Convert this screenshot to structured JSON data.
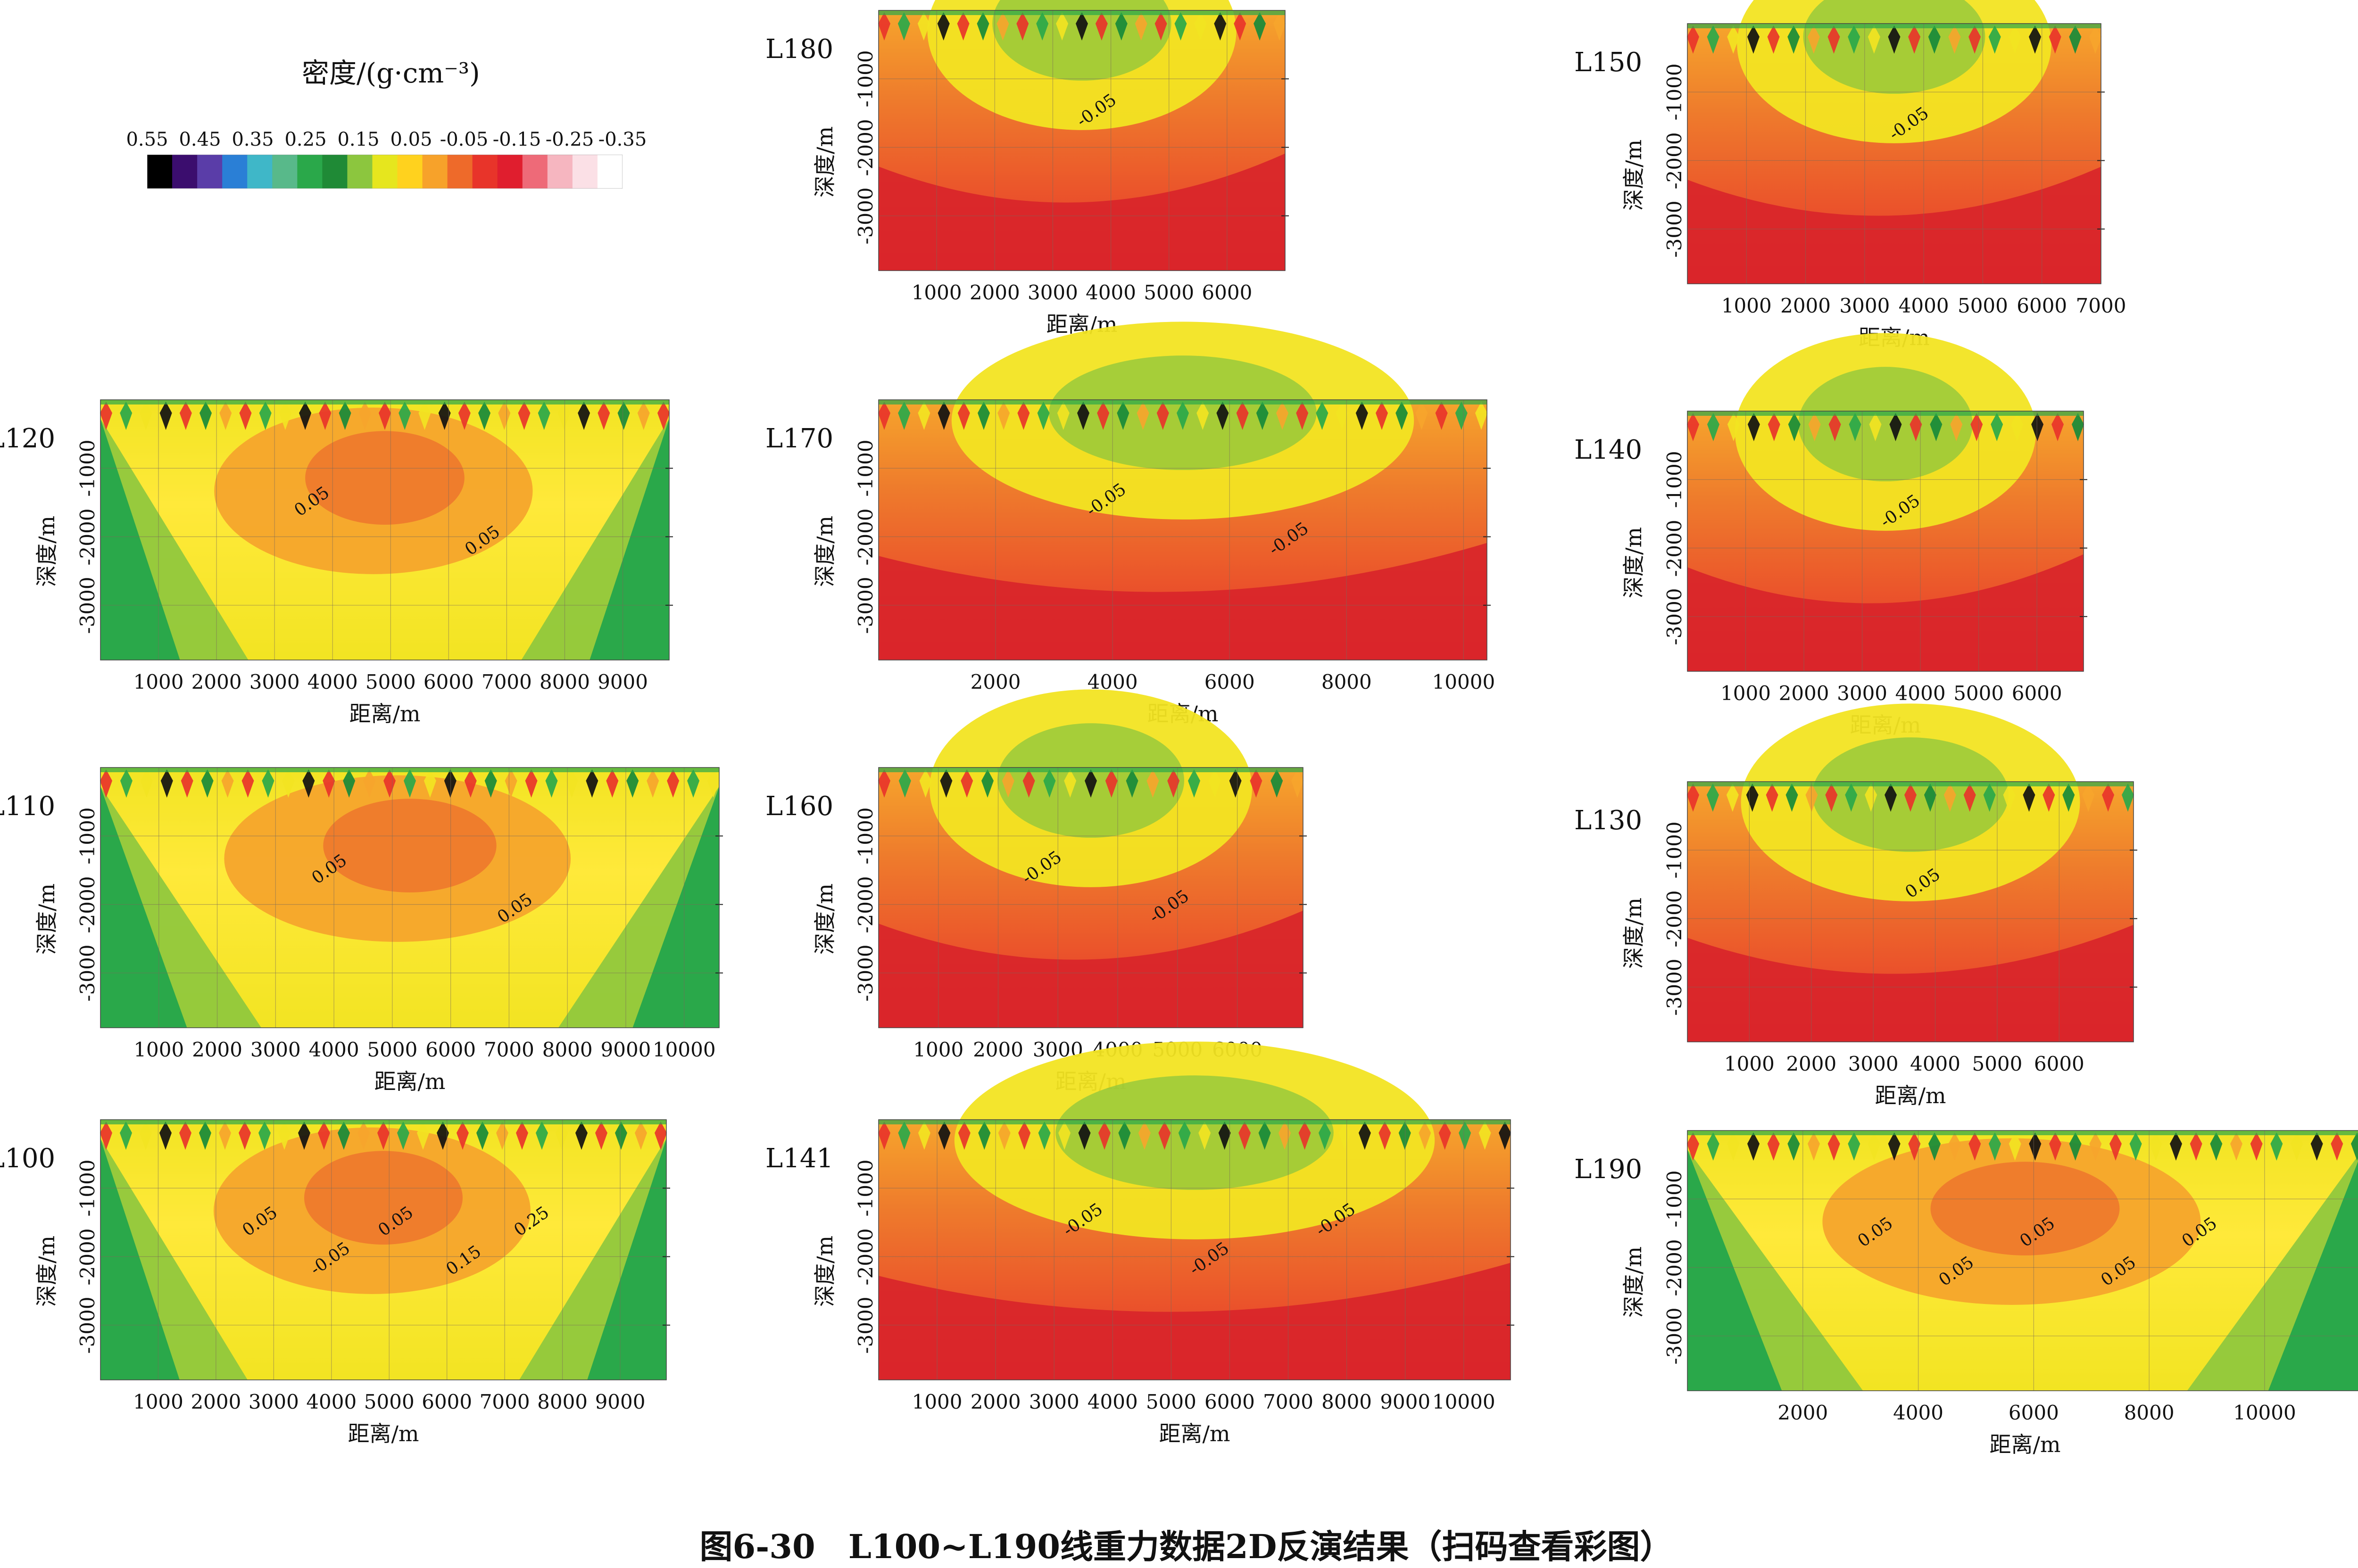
{
  "legend": {
    "title": "密度/(g·cm⁻³)",
    "ticks": [
      "0.55",
      "0.45",
      "0.35",
      "0.25",
      "0.15",
      "0.05",
      "-0.05",
      "-0.15",
      "-0.25",
      "-0.35"
    ],
    "colors": [
      "#000000",
      "#3b0d6e",
      "#5a3da8",
      "#2a7fd6",
      "#3fb7c8",
      "#58b98a",
      "#2aa84a",
      "#1f8a36",
      "#8cc63e",
      "#e6e61e",
      "#ffd21e",
      "#f7a22a",
      "#ee6a2a",
      "#e8342a",
      "#e01e2e",
      "#ee6a78",
      "#f6b6c0",
      "#fbe0e6",
      "#ffffff"
    ]
  },
  "axis_labels": {
    "x": "距离/m",
    "y": "深度/m"
  },
  "caption": "图6-30　L100~L190线重力数据2D反演结果（扫码查看彩图）",
  "chart_data": [
    {
      "type": "heatmap",
      "line": "L180",
      "xticks": [
        "1000",
        "2000",
        "3000",
        "4000",
        "5000",
        "6000"
      ],
      "yticks": [
        "-1000",
        "-2000",
        "-3000"
      ],
      "xlim": [
        0,
        7000
      ],
      "ylim": [
        -3800,
        0
      ],
      "contour_labels": [
        "-0.05"
      ],
      "dominant": "-0.05 to -0.15"
    },
    {
      "type": "heatmap",
      "line": "L150",
      "xticks": [
        "1000",
        "2000",
        "3000",
        "4000",
        "5000",
        "6000",
        "7000"
      ],
      "yticks": [
        "-1000",
        "-2000",
        "-3000"
      ],
      "xlim": [
        0,
        7000
      ],
      "ylim": [
        -3800,
        0
      ],
      "contour_labels": [
        "-0.05"
      ],
      "dominant": "-0.05 to -0.15"
    },
    {
      "type": "heatmap",
      "line": "L120",
      "xticks": [
        "1000",
        "2000",
        "3000",
        "4000",
        "5000",
        "6000",
        "7000",
        "8000",
        "9000"
      ],
      "yticks": [
        "-1000",
        "-2000",
        "-3000"
      ],
      "xlim": [
        0,
        9800
      ],
      "ylim": [
        -3800,
        0
      ],
      "contour_labels": [
        "0.05",
        "0.05"
      ],
      "dominant": "0.05 to -0.05"
    },
    {
      "type": "heatmap",
      "line": "L170",
      "xticks": [
        "2000",
        "4000",
        "6000",
        "8000",
        "10000"
      ],
      "yticks": [
        "-1000",
        "-2000",
        "-3000"
      ],
      "xlim": [
        0,
        10400
      ],
      "ylim": [
        -3800,
        0
      ],
      "contour_labels": [
        "-0.05",
        "-0.05"
      ],
      "dominant": "-0.05 to -0.15"
    },
    {
      "type": "heatmap",
      "line": "L140",
      "xticks": [
        "1000",
        "2000",
        "3000",
        "4000",
        "5000",
        "6000"
      ],
      "yticks": [
        "-1000",
        "-2000",
        "-3000"
      ],
      "xlim": [
        0,
        6800
      ],
      "ylim": [
        -3800,
        0
      ],
      "contour_labels": [
        "-0.05"
      ],
      "dominant": "-0.05 to -0.15"
    },
    {
      "type": "heatmap",
      "line": "L110",
      "xticks": [
        "1000",
        "2000",
        "3000",
        "4000",
        "5000",
        "6000",
        "7000",
        "8000",
        "9000",
        "10000"
      ],
      "yticks": [
        "-1000",
        "-2000",
        "-3000"
      ],
      "xlim": [
        0,
        10600
      ],
      "ylim": [
        -3800,
        0
      ],
      "contour_labels": [
        "0.05",
        "0.05"
      ],
      "dominant": "0.05 to -0.05"
    },
    {
      "type": "heatmap",
      "line": "L160",
      "xticks": [
        "1000",
        "2000",
        "3000",
        "4000",
        "5000",
        "6000"
      ],
      "yticks": [
        "-1000",
        "-2000",
        "-3000"
      ],
      "xlim": [
        0,
        7100
      ],
      "ylim": [
        -3800,
        0
      ],
      "contour_labels": [
        "-0.05",
        "-0.05"
      ],
      "dominant": "-0.05 to -0.15"
    },
    {
      "type": "heatmap",
      "line": "L130",
      "xticks": [
        "1000",
        "2000",
        "3000",
        "4000",
        "5000",
        "6000"
      ],
      "yticks": [
        "-1000",
        "-2000",
        "-3000"
      ],
      "xlim": [
        0,
        7200
      ],
      "ylim": [
        -3800,
        0
      ],
      "contour_labels": [
        "0.05"
      ],
      "dominant": "-0.05 to -0.15"
    },
    {
      "type": "heatmap",
      "line": "L100",
      "xticks": [
        "1000",
        "2000",
        "3000",
        "4000",
        "5000",
        "6000",
        "7000",
        "8000",
        "9000"
      ],
      "yticks": [
        "-1000",
        "-2000",
        "-3000"
      ],
      "xlim": [
        0,
        9800
      ],
      "ylim": [
        -3800,
        0
      ],
      "contour_labels": [
        "0.05",
        "-0.05",
        "0.05",
        "0.15",
        "0.25"
      ],
      "dominant": "0.05 to -0.05"
    },
    {
      "type": "heatmap",
      "line": "L141",
      "xticks": [
        "1000",
        "2000",
        "3000",
        "4000",
        "5000",
        "6000",
        "7000",
        "8000",
        "9000",
        "10000"
      ],
      "yticks": [
        "-1000",
        "-2000",
        "-3000"
      ],
      "xlim": [
        0,
        10800
      ],
      "ylim": [
        -3800,
        0
      ],
      "contour_labels": [
        "-0.05",
        "-0.05",
        "-0.05"
      ],
      "dominant": "-0.05 to -0.15"
    },
    {
      "type": "heatmap",
      "line": "L190",
      "xticks": [
        "2000",
        "4000",
        "6000",
        "8000",
        "10000"
      ],
      "yticks": [
        "-1000",
        "-2000",
        "-3000"
      ],
      "xlim": [
        0,
        11700
      ],
      "ylim": [
        -3800,
        0
      ],
      "contour_labels": [
        "0.05",
        "0.05",
        "0.05",
        "0.05",
        "0.05"
      ],
      "dominant": "0.05 to -0.05"
    }
  ]
}
